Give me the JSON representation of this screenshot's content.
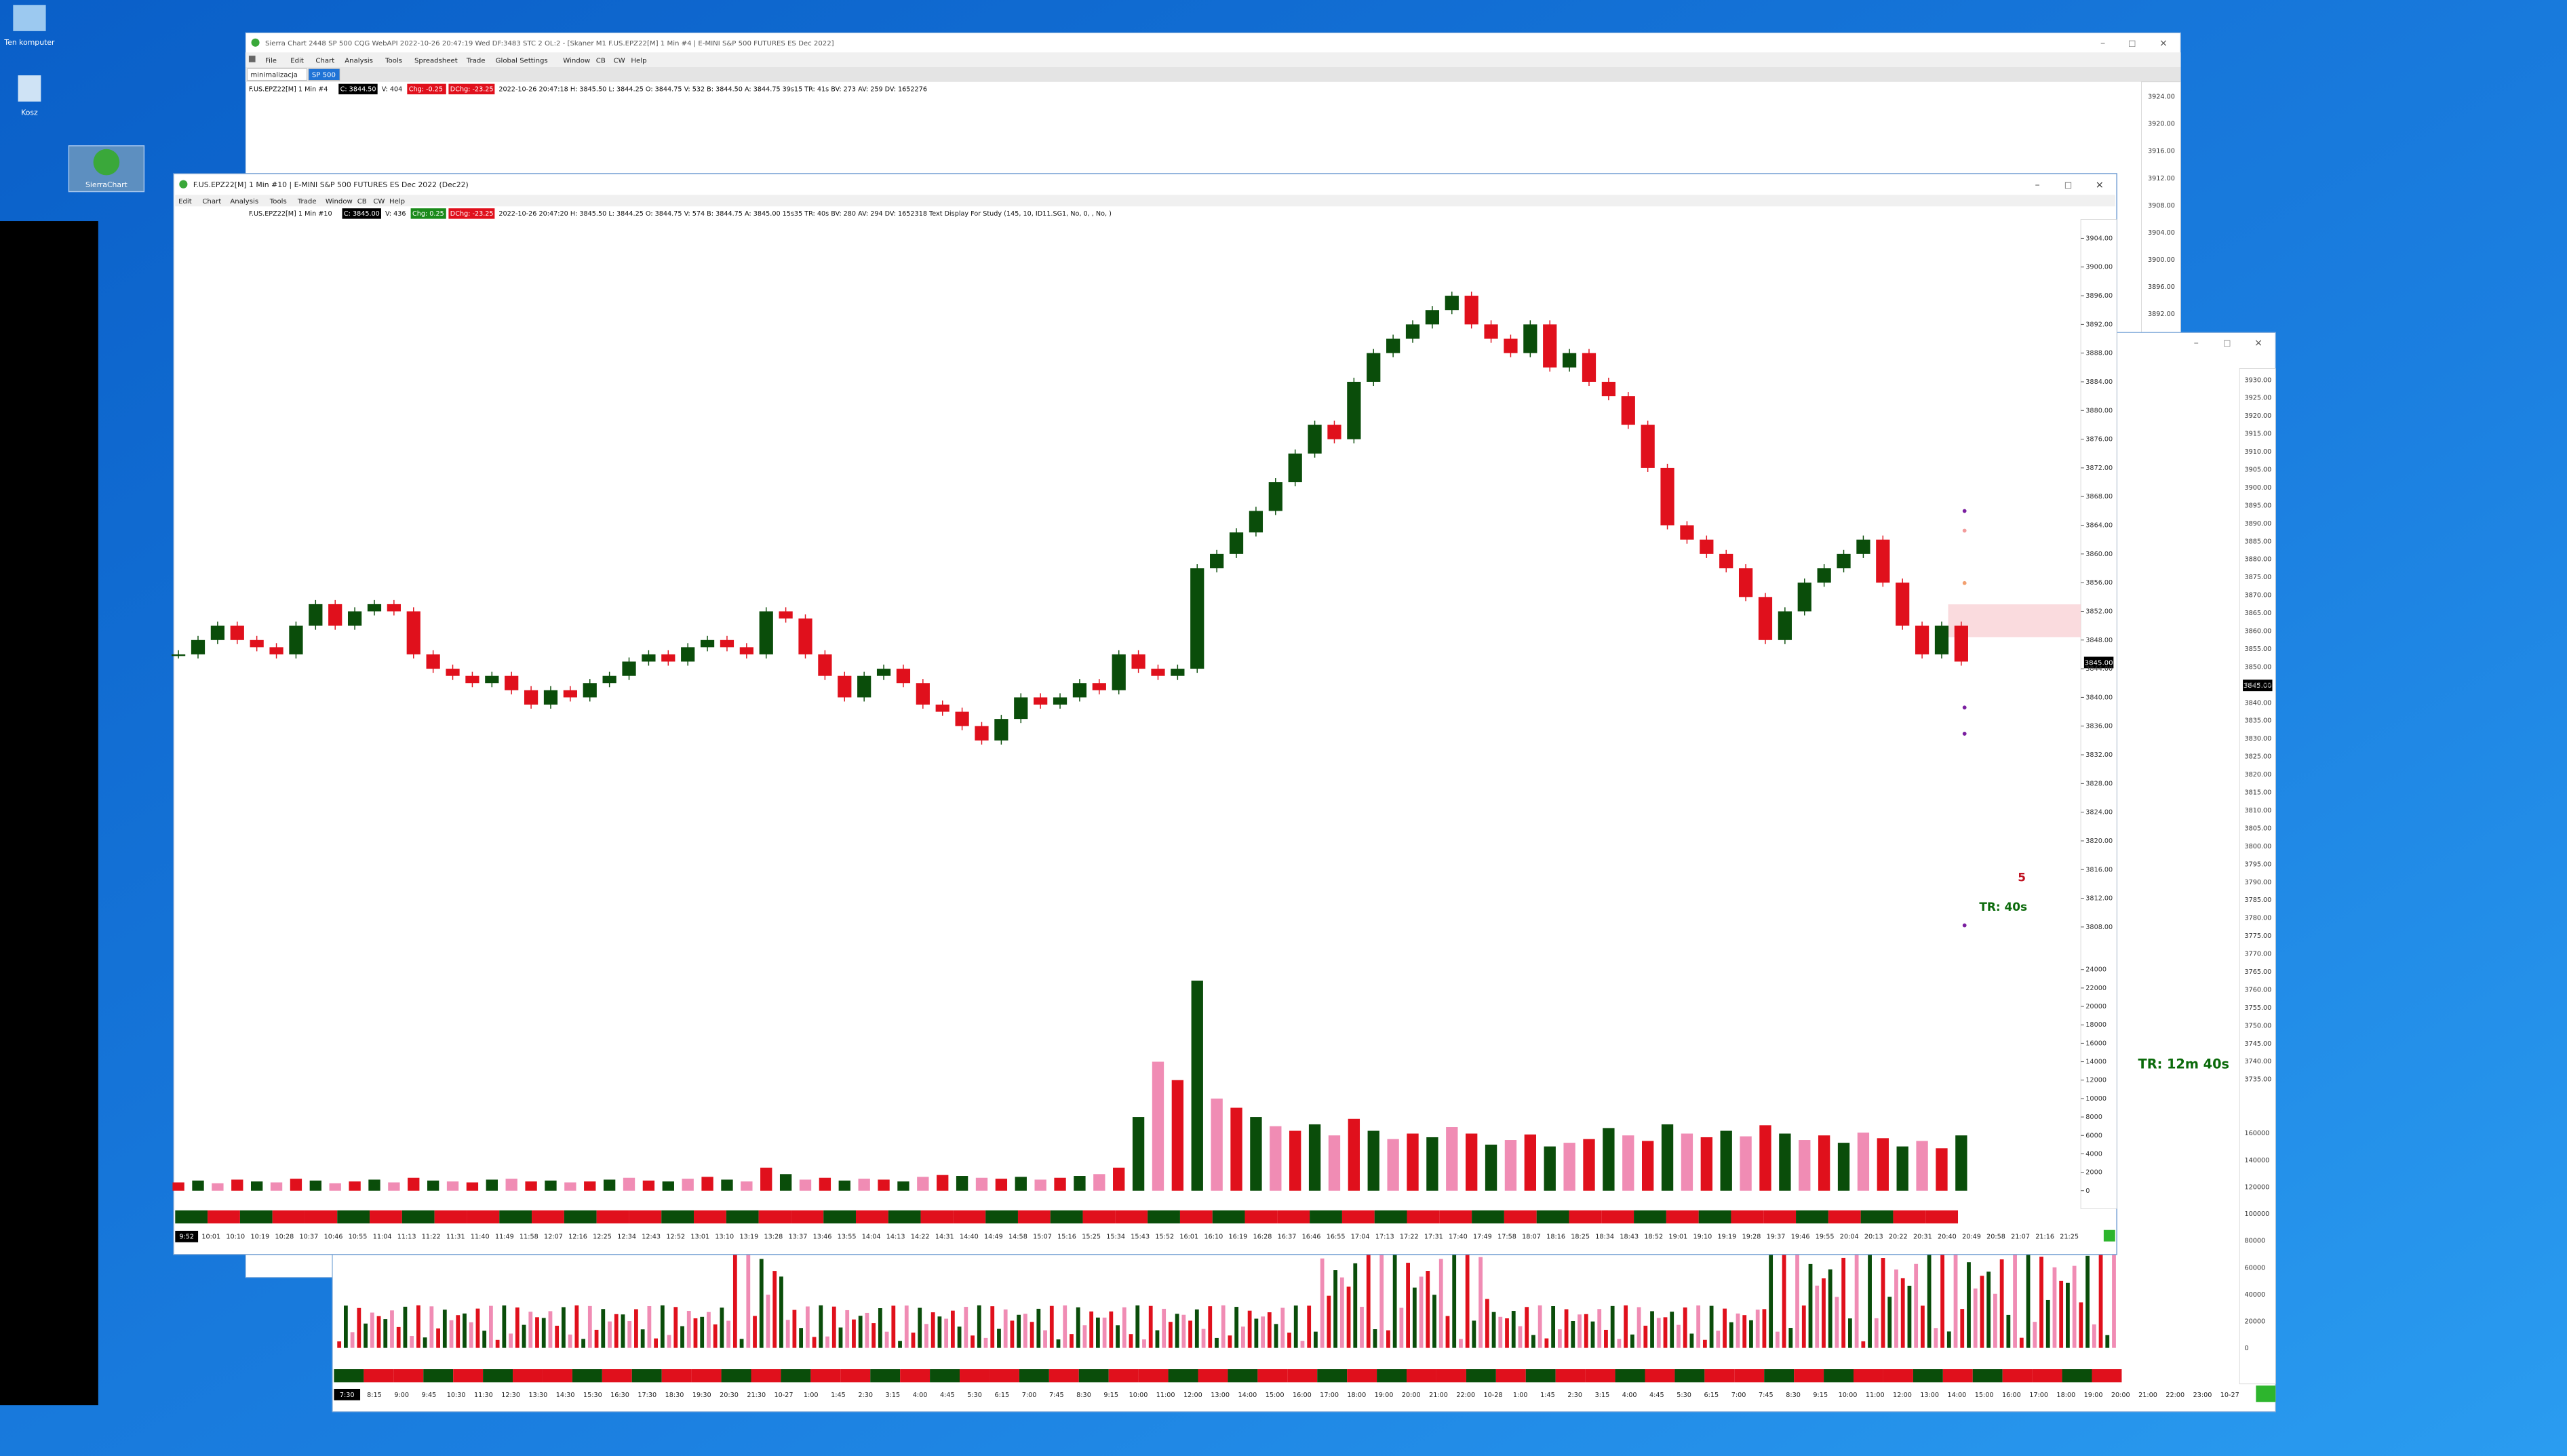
{
  "desktop_icons": [
    "Ten komputer",
    "Kosz",
    "SierraChart"
  ],
  "back_window": {
    "title": "Sierra Chart 2448 SP 500 CQG WebAPI 2022-10-26 20:47:19 Wed DF:3483 STC 2 OL:2 - [Skaner M1 F.US.EPZ22[M] 1 Min #4 | E-MINI S&P 500 FUTURES ES Dec 2022]",
    "menu": [
      "File",
      "Edit",
      "Chart",
      "Analysis",
      "Tools",
      "Spreadsheet",
      "Trade",
      "Global Settings",
      "Window",
      "CB",
      "CW",
      "Help"
    ],
    "tabs": [
      "minimalizacja",
      "SP 500"
    ],
    "info_line": [
      "F.US.EPZ22[M]  1 Min  #4",
      "C: 3844.50",
      "V: 404",
      "Chg: -0.25",
      "DChg: -23.25",
      "2022-10-26 20:47:18 H: 3845.50 L: 3844.25 O: 3844.75 V: 532 B: 3844.50 A: 3844.75 39s15 TR: 41s BV: 273 AV: 259 DV: 1652276"
    ],
    "price_axis": [
      "3924.00",
      "3920.00",
      "3916.00",
      "3912.00",
      "3908.00",
      "3904.00",
      "3900.00",
      "3896.00",
      "3892.00"
    ]
  },
  "right_window": {
    "price_axis": [
      "3930.00",
      "3925.00",
      "3920.00",
      "3915.00",
      "3910.00",
      "3905.00",
      "3900.00",
      "3895.00",
      "3890.00",
      "3885.00",
      "3880.00",
      "3875.00",
      "3870.00",
      "3865.00",
      "3860.00",
      "3855.00",
      "3850.00",
      "3845.00",
      "3840.00",
      "3835.00",
      "3830.00",
      "3825.00",
      "3820.00",
      "3815.00",
      "3810.00",
      "3805.00",
      "3800.00",
      "3795.00",
      "3790.00",
      "3785.00",
      "3780.00",
      "3775.00",
      "3770.00",
      "3765.00",
      "3760.00",
      "3755.00",
      "3750.00",
      "3745.00",
      "3740.00",
      "3735.00"
    ],
    "volume_axis": [
      "160000",
      "140000",
      "120000",
      "100000",
      "80000",
      "60000",
      "40000",
      "20000",
      "0"
    ],
    "price_label": "3845.00",
    "annotation": "TR: 12m 40s",
    "time_axis": [
      "7:30",
      "8:15",
      "9:00",
      "9:45",
      "10:30",
      "11:30",
      "12:30",
      "13:30",
      "14:30",
      "15:30",
      "16:30",
      "17:30",
      "18:30",
      "19:30",
      "20:30",
      "21:30",
      "10-27",
      "1:00",
      "1:45",
      "2:30",
      "3:15",
      "4:00",
      "4:45",
      "5:30",
      "6:15",
      "7:00",
      "7:45",
      "8:30",
      "9:15",
      "10:00",
      "11:00",
      "12:00",
      "13:00",
      "14:00",
      "15:00",
      "16:00",
      "17:00",
      "18:00",
      "19:00",
      "20:00",
      "21:00",
      "22:00",
      "10-28",
      "1:00",
      "1:45",
      "2:30",
      "3:15",
      "4:00",
      "4:45",
      "5:30",
      "6:15",
      "7:00",
      "7:45",
      "8:30",
      "9:15",
      "10:00",
      "11:00",
      "12:00",
      "13:00",
      "14:00",
      "15:00",
      "16:00",
      "17:00",
      "18:00",
      "19:00",
      "20:00",
      "21:00",
      "22:00",
      "23:00",
      "10-27"
    ]
  },
  "main_window": {
    "title": "F.US.EPZ22[M]  1 Min  #10 | E-MINI S&P 500 FUTURES ES Dec 2022 (Dec22)",
    "menu": [
      "Edit",
      "Chart",
      "Analysis",
      "Tools",
      "Trade",
      "Window",
      "CB",
      "CW",
      "Help"
    ],
    "info_line": [
      "F.US.EPZ22[M]  1 Min  #10",
      "C: 3845.00",
      "V: 436",
      "Chg: 0.25",
      "DChg: -23.25",
      "2022-10-26 20:47:20 H: 3845.50 L: 3844.25 O: 3844.75 V: 574 B: 3844.75 A: 3845.00 15s35 TR: 40s BV: 280 AV: 294 DV: 1652318 Text Display For Study  (145, 10, ID11.SG1, No, 0, , No, )"
    ],
    "ylim": [
      3804,
      3908
    ],
    "yticks": [
      {
        "value": 3904,
        "label": "3904.00"
      },
      {
        "value": 3900,
        "label": "3900.00"
      },
      {
        "value": 3896,
        "label": "3896.00"
      },
      {
        "value": 3892,
        "label": "3892.00"
      },
      {
        "value": 3888,
        "label": "3888.00"
      },
      {
        "value": 3884,
        "label": "3884.00"
      },
      {
        "value": 3880,
        "label": "3880.00"
      },
      {
        "value": 3876,
        "label": "3876.00"
      },
      {
        "value": 3872,
        "label": "3872.00"
      },
      {
        "value": 3868,
        "label": "3868.00"
      },
      {
        "value": 3864,
        "label": "3864.00"
      },
      {
        "value": 3860,
        "label": "3860.00"
      },
      {
        "value": 3856,
        "label": "3856.00"
      },
      {
        "value": 3852,
        "label": "3852.00"
      },
      {
        "value": 3848,
        "label": "3848.00"
      },
      {
        "value": 3844,
        "label": "3844.00"
      },
      {
        "value": 3840,
        "label": "3840.00"
      },
      {
        "value": 3836,
        "label": "3836.00"
      },
      {
        "value": 3832,
        "label": "3832.00"
      },
      {
        "value": 3828,
        "label": "3828.00"
      },
      {
        "value": 3824,
        "label": "3824.00"
      },
      {
        "value": 3820,
        "label": "3820.00"
      },
      {
        "value": 3816,
        "label": "3816.00"
      },
      {
        "value": 3812,
        "label": "3812.00"
      },
      {
        "value": 3808,
        "label": "3808.00"
      }
    ],
    "prices": [
      3846,
      3848,
      3850,
      3848,
      3847,
      3846,
      3850,
      3853,
      3850,
      3852,
      3853,
      3852,
      3846,
      3844,
      3843,
      3842,
      3843,
      3841,
      3839,
      3841,
      3840,
      3842,
      3843,
      3845,
      3846,
      3845,
      3847,
      3848,
      3847,
      3846,
      3852,
      3851,
      3846,
      3843,
      3840,
      3843,
      3844,
      3842,
      3839,
      3838,
      3836,
      3834,
      3837,
      3840,
      3839,
      3840,
      3842,
      3841,
      3846,
      3844,
      3843,
      3844,
      3858,
      3860,
      3863,
      3866,
      3870,
      3874,
      3878,
      3876,
      3884,
      3888,
      3890,
      3892,
      3894,
      3896,
      3892,
      3890,
      3888,
      3892,
      3886,
      3888,
      3884,
      3882,
      3878,
      3872,
      3864,
      3862,
      3860,
      3858,
      3854,
      3848,
      3852,
      3856,
      3858,
      3860,
      3862,
      3856,
      3850,
      3846,
      3850,
      3845
    ],
    "volume_ylim": [
      0,
      24000
    ],
    "volume_ticks": [
      24000,
      22000,
      20000,
      18000,
      16000,
      14000,
      12000,
      10000,
      8000,
      6000,
      4000,
      2000,
      0
    ],
    "volumes": [
      900,
      1100,
      800,
      1200,
      1000,
      900,
      1300,
      1100,
      800,
      1000,
      1200,
      900,
      1400,
      1100,
      1000,
      900,
      1200,
      1300,
      1000,
      1100,
      900,
      1000,
      1200,
      1400,
      1100,
      1000,
      1300,
      1500,
      1200,
      1000,
      2500,
      1800,
      1200,
      1400,
      1100,
      1300,
      1200,
      1000,
      1500,
      1700,
      1600,
      1400,
      1300,
      1500,
      1200,
      1400,
      1600,
      1800,
      2500,
      8000,
      14000,
      12000,
      22800,
      10000,
      9000,
      8000,
      7000,
      6500,
      7200,
      6000,
      7800,
      6500,
      5600,
      6200,
      5800,
      6900,
      6200,
      5000,
      5500,
      6100,
      4800,
      5200,
      5600,
      6800,
      6000,
      5400,
      7200,
      6200,
      5800,
      6500,
      5900,
      7100,
      6200,
      5500,
      6000,
      5200,
      6300,
      5700,
      4800,
      5400,
      4600,
      6000
    ],
    "price_label": "3845.00",
    "annotations": [
      "5",
      "TR: 40s"
    ],
    "time_axis": [
      "9:52",
      "10:01",
      "10:10",
      "10:19",
      "10:28",
      "10:37",
      "10:46",
      "10:55",
      "11:04",
      "11:13",
      "11:22",
      "11:31",
      "11:40",
      "11:49",
      "11:58",
      "12:07",
      "12:16",
      "12:25",
      "12:34",
      "12:43",
      "12:52",
      "13:01",
      "13:10",
      "13:19",
      "13:28",
      "13:37",
      "13:46",
      "13:55",
      "14:04",
      "14:13",
      "14:22",
      "14:31",
      "14:40",
      "14:49",
      "14:58",
      "15:07",
      "15:16",
      "15:25",
      "15:34",
      "15:43",
      "15:52",
      "16:01",
      "16:10",
      "16:19",
      "16:28",
      "16:37",
      "16:46",
      "16:55",
      "17:04",
      "17:13",
      "17:22",
      "17:31",
      "17:40",
      "17:49",
      "17:58",
      "18:07",
      "18:16",
      "18:25",
      "18:34",
      "18:43",
      "18:52",
      "19:01",
      "19:10",
      "19:19",
      "19:28",
      "19:37",
      "19:46",
      "19:55",
      "20:04",
      "20:13",
      "20:22",
      "20:31",
      "20:40",
      "20:49",
      "20:58",
      "21:07",
      "21:16",
      "21:25"
    ]
  }
}
